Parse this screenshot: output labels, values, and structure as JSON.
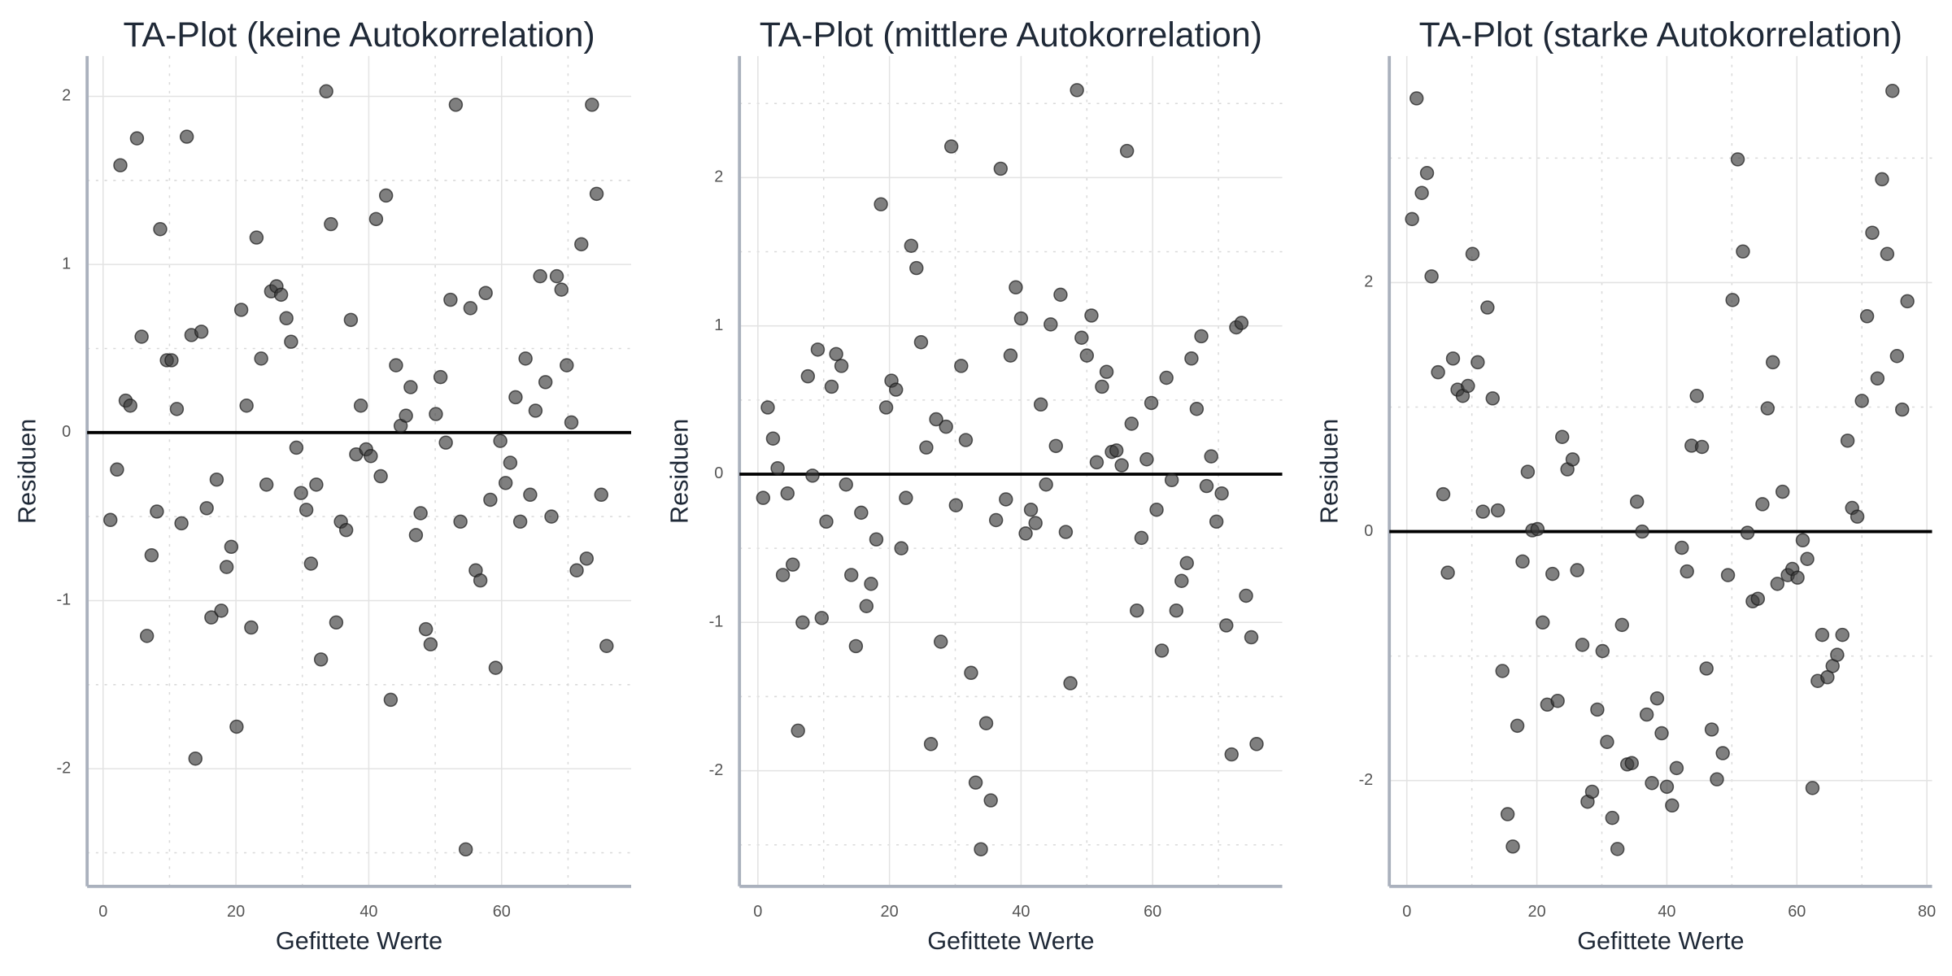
{
  "chart_data": [
    {
      "type": "scatter",
      "title": "TA-Plot (keine Autokorrelation)",
      "x_label": "Gefittete Werte",
      "y_label": "Residuen",
      "color": "#3a3a3a",
      "grid": true,
      "minor_grid": true,
      "hline": 0,
      "xlim": [
        -2.4,
        79.5
      ],
      "ylim": [
        -2.7,
        2.24
      ],
      "xticks": [
        0,
        20,
        40,
        60
      ],
      "yticks": [
        -2,
        -1,
        0,
        1,
        2
      ],
      "x": [
        1.1,
        2.1,
        2.6,
        3.4,
        4.1,
        5.1,
        5.8,
        6.6,
        7.3,
        8.1,
        8.6,
        9.6,
        10.3,
        11.1,
        11.8,
        12.6,
        13.3,
        13.9,
        14.8,
        15.6,
        16.3,
        17.1,
        17.8,
        18.6,
        19.3,
        20.1,
        20.8,
        21.6,
        22.3,
        23.1,
        23.8,
        24.6,
        25.3,
        26.1,
        26.8,
        27.6,
        28.3,
        29.1,
        29.8,
        30.6,
        31.3,
        32.1,
        32.8,
        33.6,
        34.3,
        35.1,
        35.8,
        36.6,
        37.3,
        38.1,
        38.8,
        39.6,
        40.3,
        41.1,
        41.8,
        42.6,
        43.3,
        44.1,
        44.8,
        45.6,
        46.3,
        47.1,
        47.8,
        48.6,
        49.3,
        50.1,
        50.8,
        51.6,
        52.3,
        53.1,
        53.8,
        54.6,
        55.3,
        56.1,
        56.8,
        57.6,
        58.3,
        59.1,
        59.8,
        60.6,
        61.3,
        62.1,
        62.8,
        63.6,
        64.3,
        65.1,
        65.8,
        66.6,
        67.5,
        68.3,
        69.0,
        69.8,
        70.5,
        71.3,
        72.0,
        72.8,
        73.6,
        74.3,
        75.0,
        75.8
      ],
      "y": [
        -0.52,
        -0.22,
        1.59,
        0.19,
        0.16,
        1.75,
        0.57,
        -1.21,
        -0.73,
        -0.47,
        1.21,
        0.43,
        0.43,
        0.14,
        -0.54,
        1.76,
        0.58,
        -1.94,
        0.6,
        -0.45,
        -1.1,
        -0.28,
        -1.06,
        -0.8,
        -0.68,
        -1.75,
        0.73,
        0.16,
        -1.16,
        1.16,
        0.44,
        -0.31,
        0.84,
        0.87,
        0.82,
        0.68,
        0.54,
        -0.09,
        -0.36,
        -0.46,
        -0.78,
        -0.31,
        -1.35,
        2.03,
        1.24,
        -1.13,
        -0.53,
        -0.58,
        0.67,
        -0.13,
        0.16,
        -0.1,
        -0.14,
        1.27,
        -0.26,
        1.41,
        -1.59,
        0.4,
        0.04,
        0.1,
        0.27,
        -0.61,
        -0.48,
        -1.17,
        -1.26,
        0.11,
        0.33,
        -0.06,
        0.79,
        1.95,
        -0.53,
        -2.48,
        0.74,
        -0.82,
        -0.88,
        0.83,
        -0.4,
        -1.4,
        -0.05,
        -0.3,
        -0.18,
        0.21,
        -0.53,
        0.44,
        -0.37,
        0.13,
        0.93,
        0.3,
        -0.5,
        0.93,
        0.85,
        0.4,
        0.06,
        -0.82,
        1.12,
        -0.75,
        1.95,
        1.42,
        -0.37,
        -1.27
      ]
    },
    {
      "type": "scatter",
      "title": "TA-Plot (mittlere Autokorrelation)",
      "x_label": "Gefittete Werte",
      "y_label": "Residuen",
      "color": "#3a3a3a",
      "grid": true,
      "minor_grid": true,
      "hline": 0,
      "xlim": [
        -2.8,
        79.7
      ],
      "ylim": [
        -2.78,
        2.82
      ],
      "xticks": [
        0,
        20,
        40,
        60
      ],
      "yticks": [
        -2,
        -1,
        0,
        1,
        2
      ],
      "x": [
        0.8,
        1.5,
        2.3,
        3.0,
        3.8,
        4.5,
        5.3,
        6.1,
        6.8,
        7.6,
        8.3,
        9.1,
        9.7,
        10.4,
        11.2,
        11.9,
        12.7,
        13.4,
        14.2,
        14.9,
        15.7,
        16.5,
        17.2,
        18.0,
        18.7,
        19.5,
        20.3,
        21.0,
        21.8,
        22.5,
        23.3,
        24.1,
        24.8,
        25.6,
        26.3,
        27.1,
        27.8,
        28.6,
        29.4,
        30.1,
        30.9,
        31.6,
        32.4,
        33.1,
        33.9,
        34.7,
        35.4,
        36.2,
        36.9,
        37.7,
        38.4,
        39.2,
        40.0,
        40.7,
        41.5,
        42.2,
        43.0,
        43.8,
        44.5,
        45.3,
        46.0,
        46.8,
        47.5,
        48.5,
        49.2,
        50.0,
        50.7,
        51.5,
        52.3,
        53.0,
        53.8,
        54.5,
        55.3,
        56.1,
        56.8,
        57.6,
        58.3,
        59.1,
        59.8,
        60.6,
        61.4,
        62.1,
        62.9,
        63.6,
        64.4,
        65.2,
        65.9,
        66.7,
        67.4,
        68.2,
        68.9,
        69.7,
        70.5,
        71.2,
        72.0,
        72.7,
        73.5,
        74.2,
        75.0,
        75.8
      ],
      "y": [
        -0.16,
        0.45,
        0.24,
        0.04,
        -0.68,
        -0.13,
        -0.61,
        -1.73,
        -1.0,
        0.66,
        -0.01,
        0.84,
        -0.97,
        -0.32,
        0.59,
        0.81,
        0.73,
        -0.07,
        -0.68,
        -1.16,
        -0.26,
        -0.89,
        -0.74,
        -0.44,
        1.82,
        0.45,
        0.63,
        0.57,
        -0.5,
        -0.16,
        1.54,
        1.39,
        0.89,
        0.18,
        -1.82,
        0.37,
        -1.13,
        0.32,
        2.21,
        -0.21,
        0.73,
        0.23,
        -1.34,
        -2.08,
        -2.53,
        -1.68,
        -2.2,
        -0.31,
        2.06,
        -0.17,
        0.8,
        1.26,
        1.05,
        -0.4,
        -0.24,
        -0.33,
        0.47,
        -0.07,
        1.01,
        0.19,
        1.21,
        -0.39,
        -1.41,
        2.59,
        0.92,
        0.8,
        1.07,
        0.08,
        0.59,
        0.69,
        0.15,
        0.16,
        0.06,
        2.18,
        0.34,
        -0.92,
        -0.43,
        0.1,
        0.48,
        -0.24,
        -1.19,
        0.65,
        -0.04,
        -0.92,
        -0.72,
        -0.6,
        0.78,
        0.44,
        0.93,
        -0.08,
        0.12,
        -0.32,
        -0.13,
        -1.02,
        -1.89,
        0.99,
        1.02,
        -0.82,
        -1.1,
        -1.82
      ]
    },
    {
      "type": "scatter",
      "title": "TA-Plot (starke Autokorrelation)",
      "x_label": "Gefittete Werte",
      "y_label": "Residuen",
      "color": "#3a3a3a",
      "grid": true,
      "minor_grid": true,
      "hline": 0,
      "xlim": [
        -2.7,
        80.8
      ],
      "ylim": [
        -2.85,
        3.82
      ],
      "xticks": [
        0,
        20,
        40,
        60,
        80
      ],
      "yticks": [
        -2,
        0,
        2
      ],
      "x": [
        0.8,
        1.5,
        2.3,
        3.1,
        3.8,
        4.8,
        5.6,
        6.3,
        7.1,
        7.8,
        8.6,
        9.4,
        10.1,
        10.9,
        11.7,
        12.4,
        13.2,
        14.0,
        14.7,
        15.5,
        16.3,
        17.0,
        17.8,
        18.6,
        19.3,
        20.1,
        20.9,
        21.6,
        22.4,
        23.2,
        23.9,
        24.7,
        25.5,
        26.2,
        27.0,
        27.8,
        28.5,
        29.3,
        30.1,
        30.8,
        31.6,
        32.4,
        33.1,
        33.9,
        34.6,
        35.4,
        36.2,
        36.9,
        37.7,
        38.5,
        39.2,
        40.0,
        40.8,
        41.5,
        42.3,
        43.1,
        43.8,
        44.6,
        45.4,
        46.1,
        46.9,
        47.7,
        48.6,
        49.4,
        50.1,
        50.9,
        51.7,
        52.4,
        53.2,
        54.0,
        54.7,
        55.5,
        56.3,
        57.0,
        57.8,
        58.6,
        59.3,
        60.1,
        60.9,
        61.6,
        62.4,
        63.2,
        63.9,
        64.7,
        65.5,
        66.2,
        67.0,
        67.8,
        68.5,
        69.3,
        70.0,
        70.8,
        71.6,
        72.4,
        73.1,
        73.9,
        74.7,
        75.4,
        76.2,
        77.0
      ],
      "y": [
        2.51,
        3.48,
        2.72,
        2.88,
        2.05,
        1.28,
        0.3,
        -0.33,
        1.39,
        1.14,
        1.09,
        1.17,
        2.23,
        1.36,
        0.16,
        1.8,
        1.07,
        0.17,
        -1.12,
        -2.27,
        -2.53,
        -1.56,
        -0.24,
        0.48,
        0.01,
        0.02,
        -0.73,
        -1.39,
        -0.34,
        -1.36,
        0.76,
        0.5,
        0.58,
        -0.31,
        -0.91,
        -2.17,
        -2.09,
        -1.43,
        -0.96,
        -1.69,
        -2.3,
        -2.55,
        -0.75,
        -1.87,
        -1.86,
        0.24,
        0.0,
        -1.47,
        -2.02,
        -1.34,
        -1.62,
        -2.05,
        -2.2,
        -1.9,
        -0.13,
        -0.32,
        0.69,
        1.09,
        0.68,
        -1.1,
        -1.59,
        -1.99,
        -1.78,
        -0.35,
        1.86,
        2.99,
        2.25,
        -0.01,
        -0.56,
        -0.54,
        0.22,
        0.99,
        1.36,
        -0.42,
        0.32,
        -0.35,
        -0.3,
        -0.37,
        -0.07,
        -0.22,
        -2.06,
        -1.2,
        -0.83,
        -1.17,
        -1.08,
        -0.99,
        -0.83,
        0.73,
        0.19,
        0.12,
        1.05,
        1.73,
        2.4,
        1.23,
        2.83,
        2.23,
        3.54,
        1.41,
        0.98,
        1.85
      ]
    }
  ]
}
